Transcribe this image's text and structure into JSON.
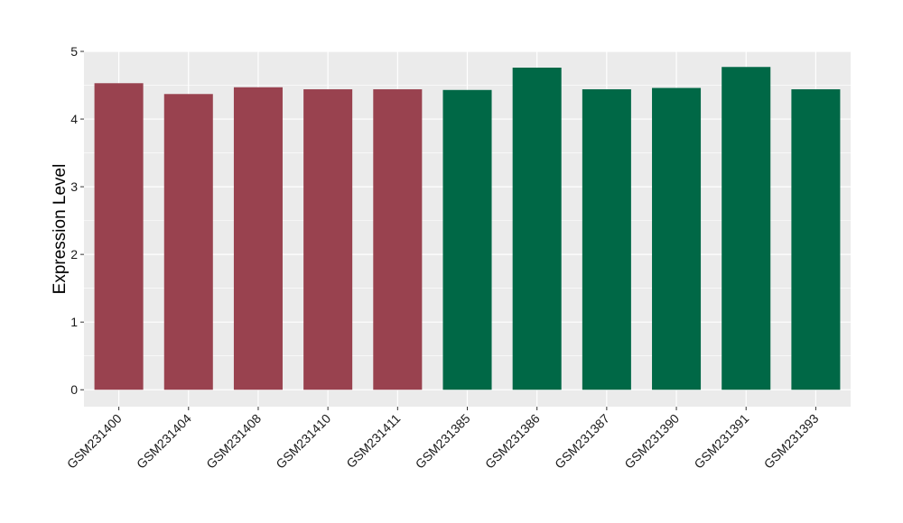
{
  "chart_data": {
    "type": "bar",
    "title": "",
    "xlabel": "",
    "ylabel": "Expression Level",
    "ylim": [
      -0.25,
      5.0
    ],
    "yticks": [
      0,
      1,
      2,
      3,
      4,
      5
    ],
    "grid": true,
    "legend": "none",
    "panel_background": "#ebebeb",
    "grid_color": "#ffffff",
    "categories": [
      "GSM231400",
      "GSM231404",
      "GSM231408",
      "GSM231410",
      "GSM231411",
      "GSM231385",
      "GSM231386",
      "GSM231387",
      "GSM231390",
      "GSM231391",
      "GSM231393"
    ],
    "values": [
      4.53,
      4.37,
      4.47,
      4.44,
      4.44,
      4.43,
      4.76,
      4.44,
      4.46,
      4.77,
      4.44
    ],
    "bar_colors": [
      "#99424f",
      "#99424f",
      "#99424f",
      "#99424f",
      "#99424f",
      "#006846",
      "#006846",
      "#006846",
      "#006846",
      "#006846",
      "#006846"
    ]
  }
}
